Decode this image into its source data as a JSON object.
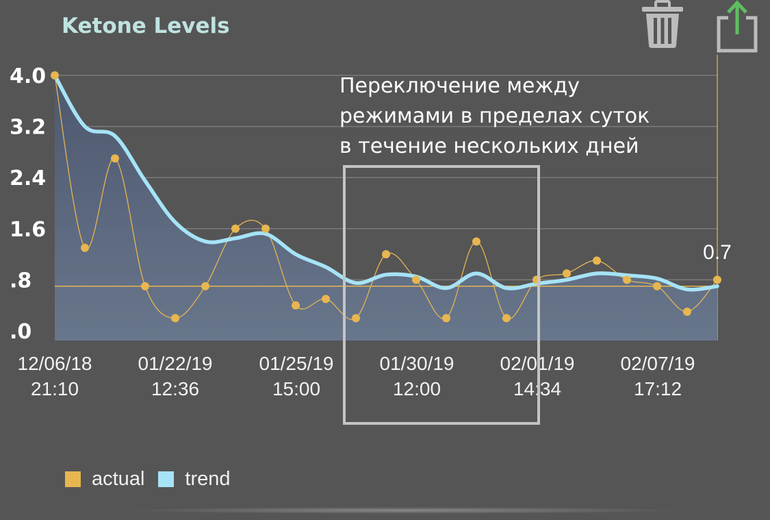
{
  "title": "Ketone Levels",
  "toolbar": {
    "delete_icon": "trash-icon",
    "share_icon": "share-icon"
  },
  "colors": {
    "actual": "#e7b650",
    "trend": "#a6e3f6",
    "background": "#555556",
    "title": "#bfe3e0"
  },
  "annotation": {
    "lines": [
      "Переключение между",
      "режимами в пределах суток",
      "в течение нескольких дней"
    ]
  },
  "last_value_label": "0.7",
  "legend": [
    {
      "label": "actual",
      "color": "#e7b650"
    },
    {
      "label": "trend",
      "color": "#a6e3f6"
    }
  ],
  "chart_data": {
    "type": "line",
    "yticks": [
      "4.0",
      "3.2",
      "2.4",
      "1.6",
      ".8",
      ".0"
    ],
    "ylim": [
      0,
      4.0
    ],
    "xticks": [
      {
        "date": "12/06/18",
        "time": "21:10"
      },
      {
        "date": "01/22/19",
        "time": "12:36"
      },
      {
        "date": "01/25/19",
        "time": "15:00"
      },
      {
        "date": "01/30/19",
        "time": "12:00"
      },
      {
        "date": "02/01/19",
        "time": "14:34"
      },
      {
        "date": "02/07/19",
        "time": "17:12"
      }
    ],
    "reference_line": 0.7,
    "series": [
      {
        "name": "actual",
        "values": [
          4.0,
          1.3,
          2.7,
          0.7,
          0.2,
          0.7,
          1.6,
          1.6,
          0.4,
          0.5,
          0.2,
          1.2,
          0.8,
          0.2,
          1.4,
          0.2,
          0.8,
          0.9,
          1.1,
          0.8,
          0.7,
          0.3,
          0.8
        ]
      },
      {
        "name": "trend",
        "values": [
          4.0,
          3.2,
          3.05,
          2.35,
          1.7,
          1.4,
          1.45,
          1.52,
          1.2,
          1.0,
          0.75,
          0.88,
          0.85,
          0.67,
          0.9,
          0.67,
          0.74,
          0.8,
          0.9,
          0.87,
          0.82,
          0.65,
          0.7
        ]
      }
    ]
  }
}
